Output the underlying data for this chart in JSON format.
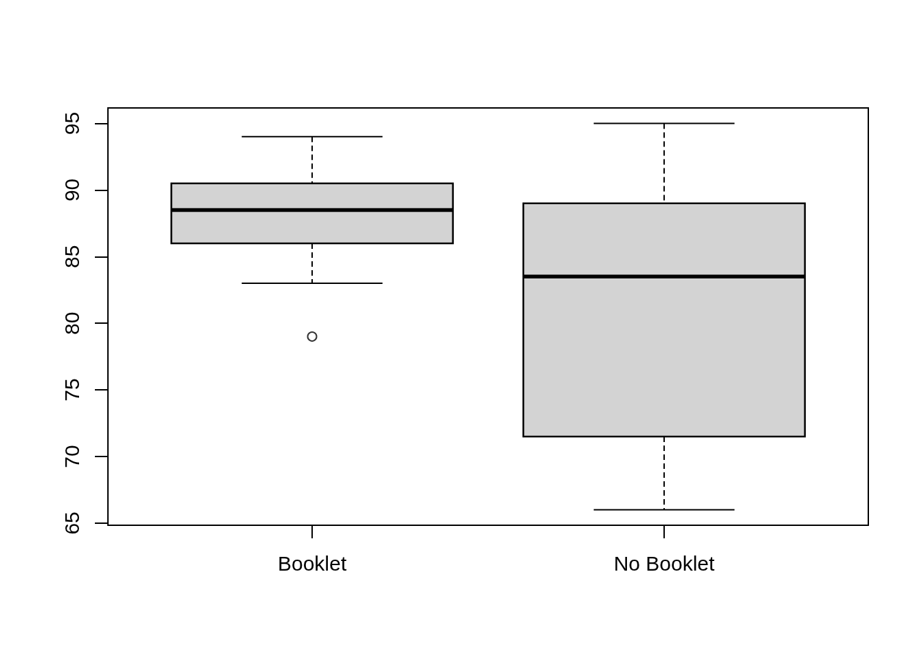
{
  "chart_data": {
    "type": "box",
    "categories": [
      "Booklet",
      "No Booklet"
    ],
    "boxes": [
      {
        "low": 83,
        "q1": 86,
        "median": 88.5,
        "q3": 90.5,
        "high": 94,
        "outliers": [
          79
        ]
      },
      {
        "low": 66,
        "q1": 71.5,
        "median": 83.5,
        "q3": 89,
        "high": 95
      }
    ],
    "color": "#d3d3d3",
    "marker": "circle",
    "grid": false,
    "ylim": [
      64.84,
      96.16
    ],
    "yticks": [
      65,
      70,
      75,
      80,
      85,
      90,
      95
    ]
  }
}
